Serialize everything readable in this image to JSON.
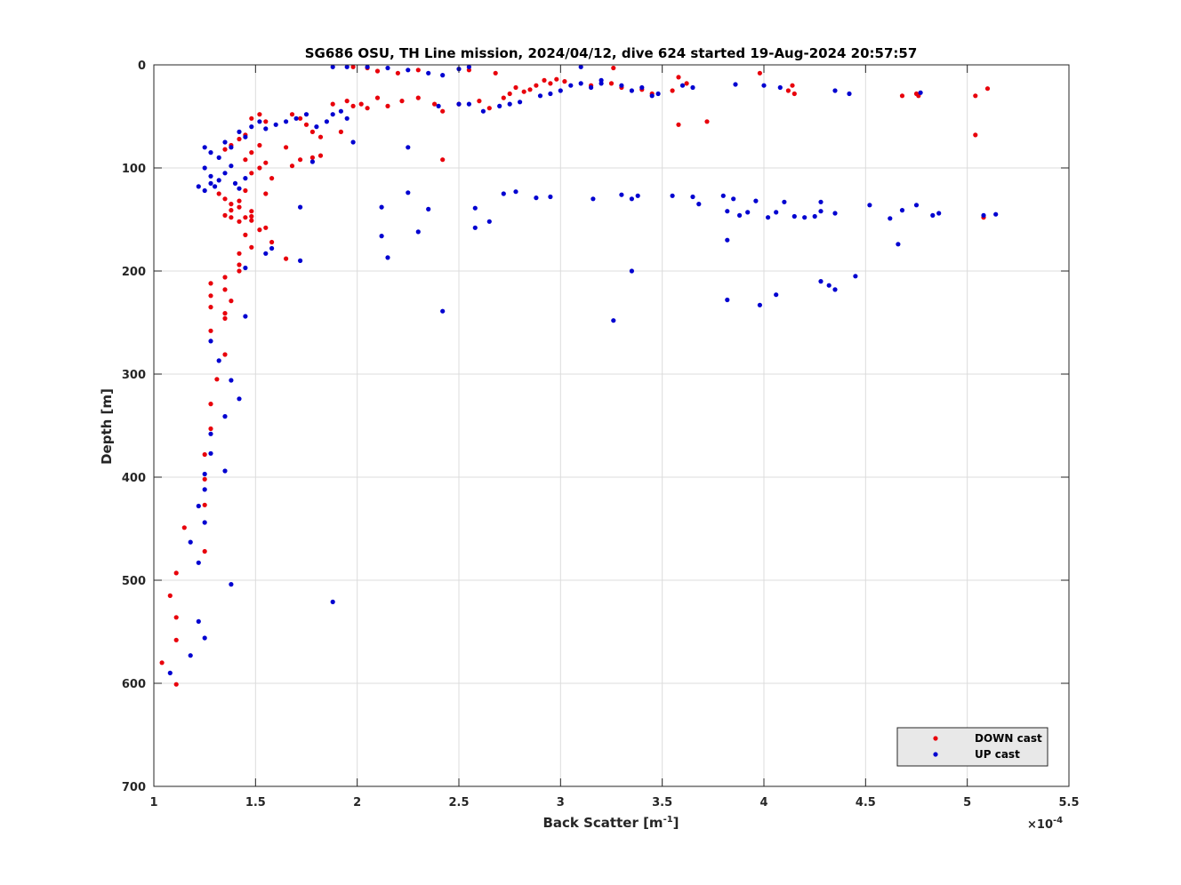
{
  "chart_data": {
    "type": "scatter",
    "title": "SG686 OSU, TH Line mission, 2024/04/12, dive 624 started 19-Aug-2024 20:57:57",
    "xlabel": "Back Scatter [m",
    "xlabel_superscript": "-1",
    "xlabel_suffix": "]",
    "ylabel": "Depth [m]",
    "x_exponent_prefix": "×10",
    "x_exponent_power": "-4",
    "xlim": [
      1,
      5.5
    ],
    "ylim": [
      0,
      700
    ],
    "y_reversed": true,
    "grid": true,
    "legend_placement": "bottom-right",
    "xticks": [
      "1",
      "1.5",
      "2",
      "2.5",
      "3",
      "3.5",
      "4",
      "4.5",
      "5",
      "5.5"
    ],
    "yticks": [
      "0",
      "100",
      "200",
      "300",
      "400",
      "500",
      "600",
      "700"
    ],
    "series": [
      {
        "name": "DOWN cast",
        "color": "#e8000b",
        "points": [
          [
            1.04,
            580
          ],
          [
            1.08,
            515
          ],
          [
            1.11,
            601
          ],
          [
            1.11,
            558
          ],
          [
            1.11,
            536
          ],
          [
            1.11,
            493
          ],
          [
            1.15,
            449
          ],
          [
            1.25,
            472
          ],
          [
            1.25,
            427
          ],
          [
            1.25,
            402
          ],
          [
            1.25,
            378
          ],
          [
            1.28,
            353
          ],
          [
            1.28,
            329
          ],
          [
            1.31,
            305
          ],
          [
            1.35,
            281
          ],
          [
            1.28,
            258
          ],
          [
            1.35,
            246
          ],
          [
            1.35,
            241
          ],
          [
            1.28,
            235
          ],
          [
            1.28,
            224
          ],
          [
            1.28,
            212
          ],
          [
            1.35,
            218
          ],
          [
            1.35,
            206
          ],
          [
            1.38,
            229
          ],
          [
            1.42,
            200
          ],
          [
            1.42,
            194
          ],
          [
            1.42,
            183
          ],
          [
            1.45,
            165
          ],
          [
            1.48,
            177
          ],
          [
            1.35,
            146
          ],
          [
            1.38,
            148
          ],
          [
            1.42,
            152
          ],
          [
            1.45,
            148
          ],
          [
            1.48,
            142
          ],
          [
            1.48,
            147
          ],
          [
            1.48,
            151
          ],
          [
            1.38,
            141
          ],
          [
            1.42,
            138
          ],
          [
            1.32,
            125
          ],
          [
            1.35,
            130
          ],
          [
            1.38,
            135
          ],
          [
            1.42,
            132
          ],
          [
            1.45,
            122
          ],
          [
            1.52,
            160
          ],
          [
            1.55,
            158
          ],
          [
            1.58,
            172
          ],
          [
            1.65,
            188
          ],
          [
            1.55,
            125
          ],
          [
            1.58,
            110
          ],
          [
            1.55,
            95
          ],
          [
            1.52,
            100
          ],
          [
            1.48,
            105
          ],
          [
            1.45,
            92
          ],
          [
            1.48,
            85
          ],
          [
            1.52,
            78
          ],
          [
            1.55,
            55
          ],
          [
            1.52,
            48
          ],
          [
            1.48,
            52
          ],
          [
            1.45,
            68
          ],
          [
            1.42,
            72
          ],
          [
            1.38,
            78
          ],
          [
            1.35,
            82
          ],
          [
            1.65,
            80
          ],
          [
            1.68,
            98
          ],
          [
            1.72,
            92
          ],
          [
            1.78,
            90
          ],
          [
            1.82,
            88
          ],
          [
            1.82,
            70
          ],
          [
            1.78,
            65
          ],
          [
            1.75,
            58
          ],
          [
            1.72,
            52
          ],
          [
            1.68,
            48
          ],
          [
            1.88,
            38
          ],
          [
            1.92,
            65
          ],
          [
            1.95,
            35
          ],
          [
            1.98,
            40
          ],
          [
            2.02,
            38
          ],
          [
            2.05,
            42
          ],
          [
            2.1,
            32
          ],
          [
            2.15,
            40
          ],
          [
            2.22,
            35
          ],
          [
            2.3,
            32
          ],
          [
            2.38,
            38
          ],
          [
            2.42,
            45
          ],
          [
            2.42,
            92
          ],
          [
            2.5,
            38
          ],
          [
            2.6,
            35
          ],
          [
            2.65,
            42
          ],
          [
            2.72,
            32
          ],
          [
            2.75,
            28
          ],
          [
            2.78,
            22
          ],
          [
            2.82,
            26
          ],
          [
            2.85,
            24
          ],
          [
            2.88,
            20
          ],
          [
            2.92,
            15
          ],
          [
            2.95,
            18
          ],
          [
            2.98,
            14
          ],
          [
            3.02,
            16
          ],
          [
            3.15,
            20
          ],
          [
            3.25,
            18
          ],
          [
            3.3,
            22
          ],
          [
            3.4,
            24
          ],
          [
            3.45,
            28
          ],
          [
            3.55,
            25
          ],
          [
            3.58,
            58
          ],
          [
            3.72,
            55
          ],
          [
            3.58,
            12
          ],
          [
            3.62,
            18
          ],
          [
            3.98,
            8
          ],
          [
            2.68,
            8
          ],
          [
            2.55,
            5
          ],
          [
            2.3,
            5
          ],
          [
            2.2,
            8
          ],
          [
            2.1,
            6
          ],
          [
            2.05,
            3
          ],
          [
            1.98,
            2
          ],
          [
            3.26,
            3
          ],
          [
            4.12,
            25
          ],
          [
            4.14,
            20
          ],
          [
            4.15,
            28
          ],
          [
            4.68,
            30
          ],
          [
            4.75,
            28
          ],
          [
            4.76,
            30
          ],
          [
            5.04,
            30
          ],
          [
            5.04,
            68
          ],
          [
            5.1,
            23
          ],
          [
            5.08,
            148
          ]
        ]
      },
      {
        "name": "UP cast",
        "color": "#0000d0",
        "points": [
          [
            1.08,
            590
          ],
          [
            1.18,
            573
          ],
          [
            1.25,
            556
          ],
          [
            1.22,
            540
          ],
          [
            1.38,
            504
          ],
          [
            1.22,
            483
          ],
          [
            1.18,
            463
          ],
          [
            1.25,
            444
          ],
          [
            1.22,
            428
          ],
          [
            1.25,
            412
          ],
          [
            1.25,
            397
          ],
          [
            1.35,
            394
          ],
          [
            1.28,
            377
          ],
          [
            1.28,
            358
          ],
          [
            1.35,
            341
          ],
          [
            1.42,
            324
          ],
          [
            1.38,
            306
          ],
          [
            1.32,
            287
          ],
          [
            1.28,
            268
          ],
          [
            1.45,
            244
          ],
          [
            1.45,
            197
          ],
          [
            1.55,
            183
          ],
          [
            1.58,
            178
          ],
          [
            1.72,
            190
          ],
          [
            1.22,
            118
          ],
          [
            1.25,
            122
          ],
          [
            1.28,
            115
          ],
          [
            1.3,
            118
          ],
          [
            1.25,
            100
          ],
          [
            1.28,
            108
          ],
          [
            1.32,
            112
          ],
          [
            1.35,
            105
          ],
          [
            1.38,
            98
          ],
          [
            1.4,
            115
          ],
          [
            1.42,
            120
          ],
          [
            1.45,
            110
          ],
          [
            1.25,
            80
          ],
          [
            1.28,
            85
          ],
          [
            1.32,
            90
          ],
          [
            1.35,
            75
          ],
          [
            1.38,
            80
          ],
          [
            1.42,
            65
          ],
          [
            1.45,
            70
          ],
          [
            1.48,
            60
          ],
          [
            1.52,
            55
          ],
          [
            1.55,
            62
          ],
          [
            1.6,
            58
          ],
          [
            1.65,
            55
          ],
          [
            1.7,
            52
          ],
          [
            1.75,
            48
          ],
          [
            1.8,
            60
          ],
          [
            1.85,
            55
          ],
          [
            1.88,
            48
          ],
          [
            1.92,
            45
          ],
          [
            1.95,
            52
          ],
          [
            1.98,
            75
          ],
          [
            1.72,
            138
          ],
          [
            1.78,
            94
          ],
          [
            1.88,
            521
          ],
          [
            2.12,
            138
          ],
          [
            2.12,
            166
          ],
          [
            2.15,
            187
          ],
          [
            2.25,
            124
          ],
          [
            2.3,
            162
          ],
          [
            2.35,
            140
          ],
          [
            2.42,
            239
          ],
          [
            2.25,
            80
          ],
          [
            2.4,
            40
          ],
          [
            2.5,
            38
          ],
          [
            2.55,
            38
          ],
          [
            2.62,
            45
          ],
          [
            2.7,
            40
          ],
          [
            2.75,
            38
          ],
          [
            2.8,
            36
          ],
          [
            2.9,
            30
          ],
          [
            2.95,
            28
          ],
          [
            3.0,
            25
          ],
          [
            3.05,
            20
          ],
          [
            3.1,
            18
          ],
          [
            3.15,
            22
          ],
          [
            3.2,
            18
          ],
          [
            3.3,
            20
          ],
          [
            3.35,
            25
          ],
          [
            3.4,
            22
          ],
          [
            3.45,
            30
          ],
          [
            3.48,
            28
          ],
          [
            2.58,
            139
          ],
          [
            2.58,
            158
          ],
          [
            2.65,
            152
          ],
          [
            2.72,
            125
          ],
          [
            2.78,
            123
          ],
          [
            2.88,
            129
          ],
          [
            2.95,
            128
          ],
          [
            3.16,
            130
          ],
          [
            3.3,
            126
          ],
          [
            3.35,
            130
          ],
          [
            3.38,
            127
          ],
          [
            3.35,
            200
          ],
          [
            3.26,
            248
          ],
          [
            3.55,
            127
          ],
          [
            3.65,
            128
          ],
          [
            3.68,
            135
          ],
          [
            3.8,
            127
          ],
          [
            3.85,
            130
          ],
          [
            3.82,
            142
          ],
          [
            3.88,
            146
          ],
          [
            3.92,
            143
          ],
          [
            3.96,
            132
          ],
          [
            4.02,
            148
          ],
          [
            4.06,
            143
          ],
          [
            4.1,
            133
          ],
          [
            4.15,
            147
          ],
          [
            4.2,
            148
          ],
          [
            4.25,
            147
          ],
          [
            4.28,
            142
          ],
          [
            4.28,
            133
          ],
          [
            4.35,
            144
          ],
          [
            4.52,
            136
          ],
          [
            4.62,
            149
          ],
          [
            4.68,
            141
          ],
          [
            4.75,
            136
          ],
          [
            4.83,
            146
          ],
          [
            4.86,
            144
          ],
          [
            5.08,
            146
          ],
          [
            5.14,
            145
          ],
          [
            3.82,
            170
          ],
          [
            3.82,
            228
          ],
          [
            3.98,
            233
          ],
          [
            4.06,
            223
          ],
          [
            4.28,
            210
          ],
          [
            4.32,
            214
          ],
          [
            4.35,
            218
          ],
          [
            4.45,
            205
          ],
          [
            4.66,
            174
          ],
          [
            1.88,
            2
          ],
          [
            1.95,
            2
          ],
          [
            2.05,
            2
          ],
          [
            2.15,
            3
          ],
          [
            2.25,
            5
          ],
          [
            2.35,
            8
          ],
          [
            2.42,
            10
          ],
          [
            2.5,
            4
          ],
          [
            2.55,
            2
          ],
          [
            3.1,
            2
          ],
          [
            3.2,
            15
          ],
          [
            3.6,
            20
          ],
          [
            3.65,
            22
          ],
          [
            3.86,
            19
          ],
          [
            4.0,
            20
          ],
          [
            4.08,
            22
          ],
          [
            4.35,
            25
          ],
          [
            4.42,
            28
          ],
          [
            4.77,
            27
          ]
        ]
      }
    ]
  }
}
